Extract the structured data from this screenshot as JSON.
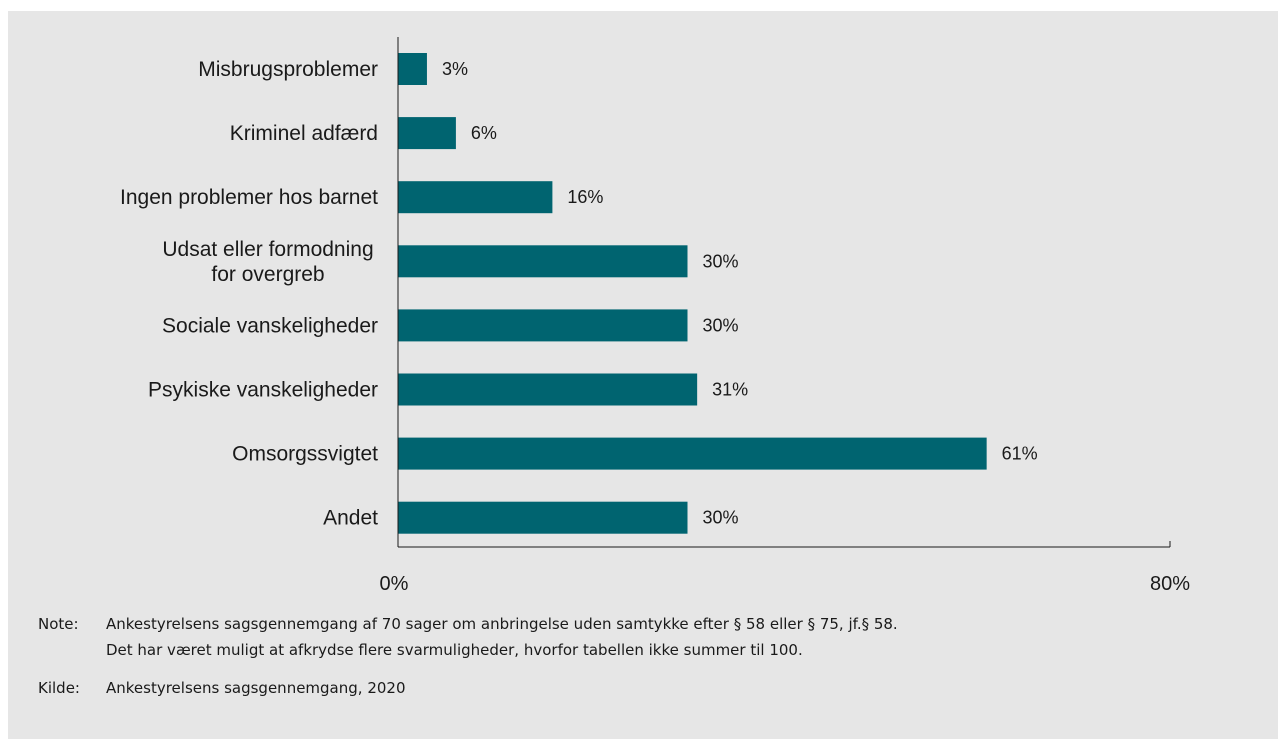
{
  "chart_data": {
    "type": "bar",
    "orientation": "horizontal",
    "categories": [
      [
        "Misbrugsproblemer"
      ],
      [
        "Kriminel adfærd"
      ],
      [
        "Ingen problemer hos barnet"
      ],
      [
        "Udsat eller formodning",
        "for overgreb"
      ],
      [
        "Sociale vanskeligheder"
      ],
      [
        "Psykiske vanskeligheder"
      ],
      [
        "Omsorgssvigtet"
      ],
      [
        "Andet"
      ]
    ],
    "values": [
      3,
      6,
      16,
      30,
      30,
      31,
      61,
      30
    ],
    "value_labels": [
      "3%",
      "6%",
      "16%",
      "30%",
      "30%",
      "31%",
      "61%",
      "30%"
    ],
    "xlim": [
      0,
      80
    ],
    "x_ticks": [
      "0%",
      "80%"
    ],
    "bar_color": "#006470",
    "grid": false,
    "legend": false,
    "title": "",
    "xlabel": "",
    "ylabel": ""
  },
  "notes": {
    "note_key": "Note:",
    "note_lines": [
      "Ankestyrelsens sagsgennemgang af 70 sager om anbringelse uden samtykke efter § 58 eller § 75, jf.§ 58.",
      "Det har været muligt at afkrydse flere svarmuligheder, hvorfor tabellen ikke summer til 100."
    ],
    "source_key": "Kilde:",
    "source_text": "Ankestyrelsens sagsgennemgang, 2020"
  },
  "colors": {
    "panel_background": "#e6e6e6",
    "bar": "#006470",
    "axis": "#1a1a1a"
  }
}
